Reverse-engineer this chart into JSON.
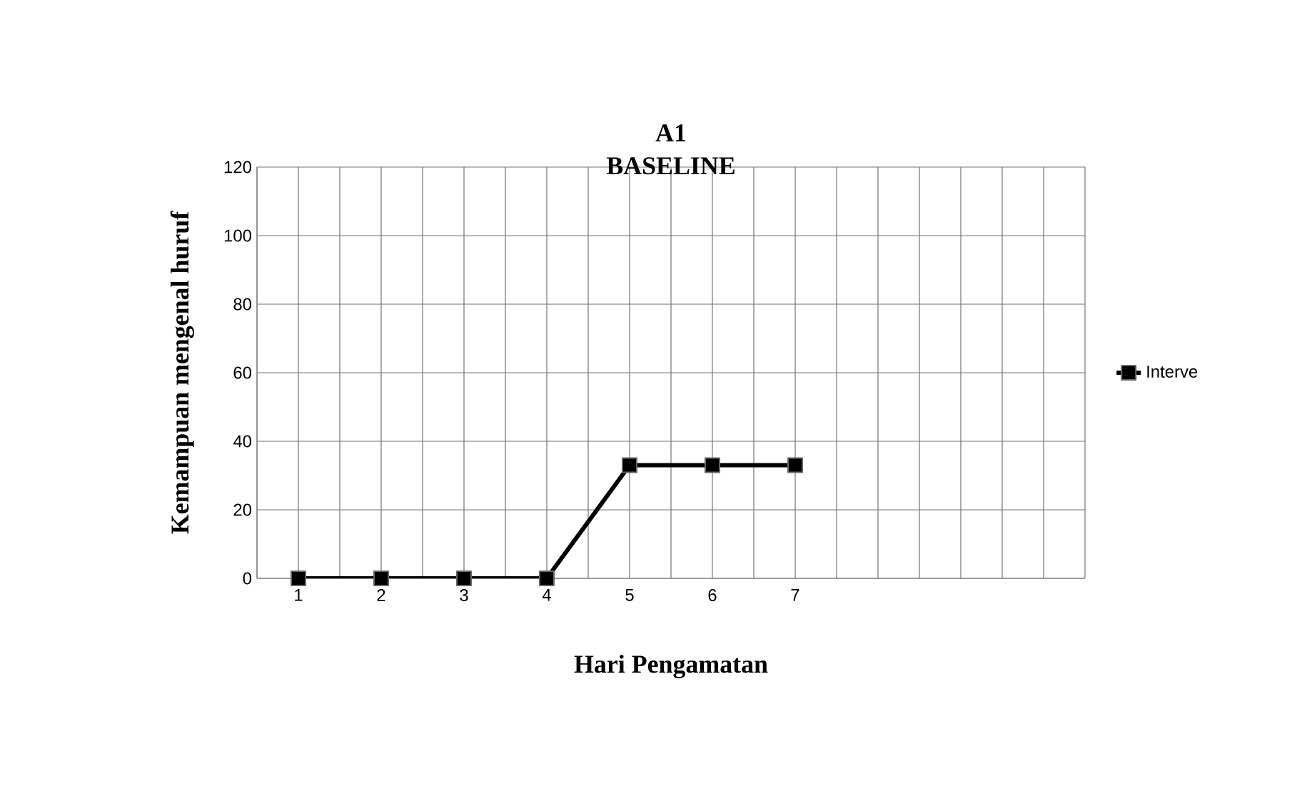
{
  "chart_data": {
    "type": "line",
    "title": "A1",
    "subtitle": "BASELINE",
    "xlabel": "Hari Pengamatan",
    "ylabel": "Kemampuan  mengenal huruf",
    "categories": [
      "1",
      "2",
      "3",
      "4",
      "5",
      "6",
      "7",
      null,
      null,
      null
    ],
    "series": [
      {
        "name": "Interve",
        "color": "#000000",
        "values": [
          0,
          0,
          0,
          0,
          33,
          33,
          33,
          null,
          null,
          null
        ]
      }
    ],
    "ylim": [
      0,
      120
    ],
    "yticks": [
      0,
      20,
      40,
      60,
      80,
      100,
      120
    ],
    "grid": true,
    "legend": "right",
    "marker": "square",
    "line_style": "solid"
  }
}
